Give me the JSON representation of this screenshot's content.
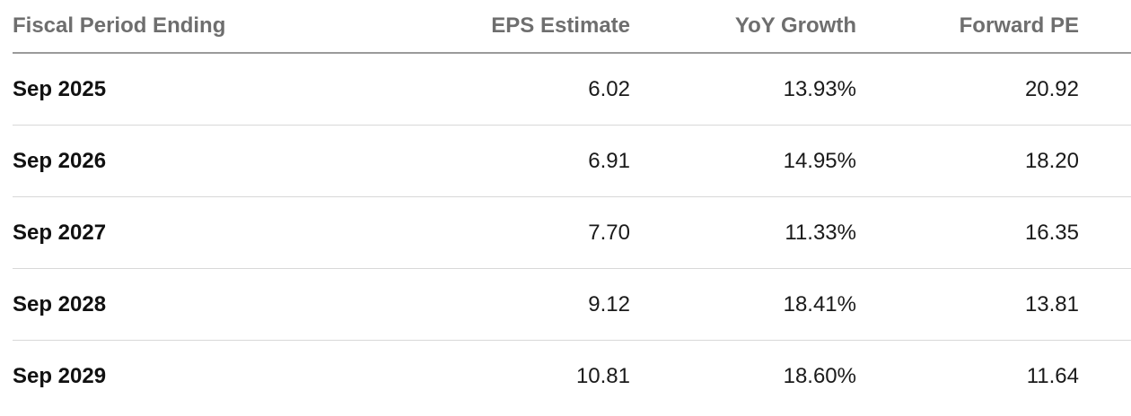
{
  "table": {
    "headers": {
      "period": "Fiscal Period Ending",
      "eps": "EPS Estimate",
      "growth": "YoY Growth",
      "pe": "Forward PE"
    },
    "rows": [
      {
        "period": "Sep 2025",
        "eps": "6.02",
        "growth": "13.93%",
        "pe": "20.92"
      },
      {
        "period": "Sep 2026",
        "eps": "6.91",
        "growth": "14.95%",
        "pe": "18.20"
      },
      {
        "period": "Sep 2027",
        "eps": "7.70",
        "growth": "11.33%",
        "pe": "16.35"
      },
      {
        "period": "Sep 2028",
        "eps": "9.12",
        "growth": "18.41%",
        "pe": "13.81"
      },
      {
        "period": "Sep 2029",
        "eps": "10.81",
        "growth": "18.60%",
        "pe": "11.64"
      }
    ]
  }
}
